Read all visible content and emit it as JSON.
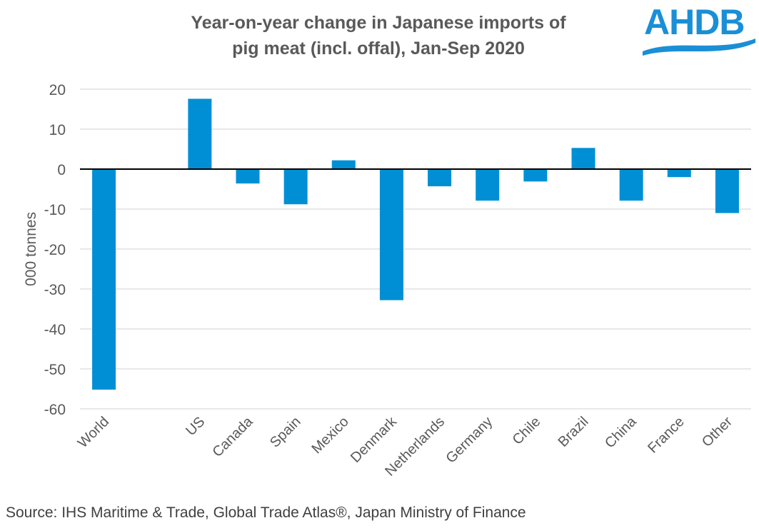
{
  "logo": {
    "text": "AHDB",
    "color": "#1a8fd6"
  },
  "source": "Source: IHS Maritime & Trade, Global Trade Atlas®, Japan Ministry of Finance",
  "chart_data": {
    "type": "bar",
    "title": "Year-on-year change in Japanese imports of pig meat (incl. offal), Jan-Sep 2020",
    "title_lines": [
      "Year-on-year change in Japanese imports of",
      "pig meat (incl. offal), Jan-Sep 2020"
    ],
    "xlabel": "",
    "ylabel": "000 tonnes",
    "ylim": [
      -60,
      20
    ],
    "yticks": [
      20,
      10,
      0,
      -10,
      -20,
      -30,
      -40,
      -50,
      -60
    ],
    "grid": true,
    "bar_color": "#008fd5",
    "categories": [
      "World",
      "",
      "US",
      "Canada",
      "Spain",
      "Mexico",
      "Denmark",
      "Netherlands",
      "Germany",
      "Chile",
      "Brazil",
      "China",
      "France",
      "Other"
    ],
    "values": [
      -55.2,
      null,
      17.6,
      -3.6,
      -8.8,
      2.2,
      -32.8,
      -4.3,
      -7.9,
      -3.1,
      5.3,
      -7.9,
      -2.0,
      -11.0
    ]
  }
}
